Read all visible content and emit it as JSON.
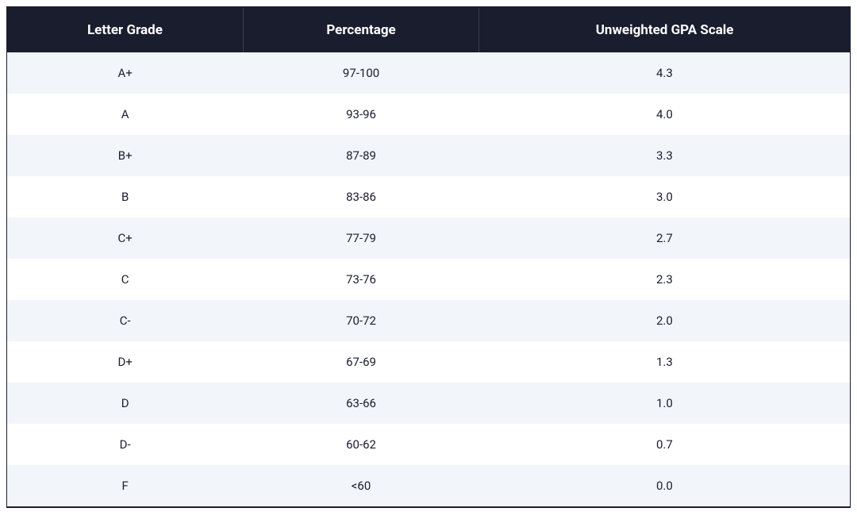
{
  "gpa_table": {
    "type": "table",
    "header_bg_color": "#1a1d2e",
    "header_text_color": "#ffffff",
    "row_odd_bg_color": "#f2f6fa",
    "row_even_bg_color": "#ffffff",
    "cell_text_color": "#1a1d2e",
    "header_fontsize": 17,
    "cell_fontsize": 15,
    "columns": [
      {
        "label": "Letter Grade",
        "width_pct": 28
      },
      {
        "label": "Percentage",
        "width_pct": 28
      },
      {
        "label": "Unweighted GPA Scale",
        "width_pct": 44
      }
    ],
    "rows": [
      {
        "letter": "A+",
        "percentage": "97-100",
        "gpa": "4.3"
      },
      {
        "letter": "A",
        "percentage": "93-96",
        "gpa": "4.0"
      },
      {
        "letter": "B+",
        "percentage": "87-89",
        "gpa": "3.3"
      },
      {
        "letter": "B",
        "percentage": "83-86",
        "gpa": "3.0"
      },
      {
        "letter": "C+",
        "percentage": "77-79",
        "gpa": "2.7"
      },
      {
        "letter": "C",
        "percentage": "73-76",
        "gpa": "2.3"
      },
      {
        "letter": "C-",
        "percentage": "70-72",
        "gpa": "2.0"
      },
      {
        "letter": "D+",
        "percentage": "67-69",
        "gpa": "1.3"
      },
      {
        "letter": "D",
        "percentage": "63-66",
        "gpa": "1.0"
      },
      {
        "letter": "D-",
        "percentage": "60-62",
        "gpa": "0.7"
      },
      {
        "letter": "F",
        "percentage": "<60",
        "gpa": "0.0"
      }
    ]
  }
}
